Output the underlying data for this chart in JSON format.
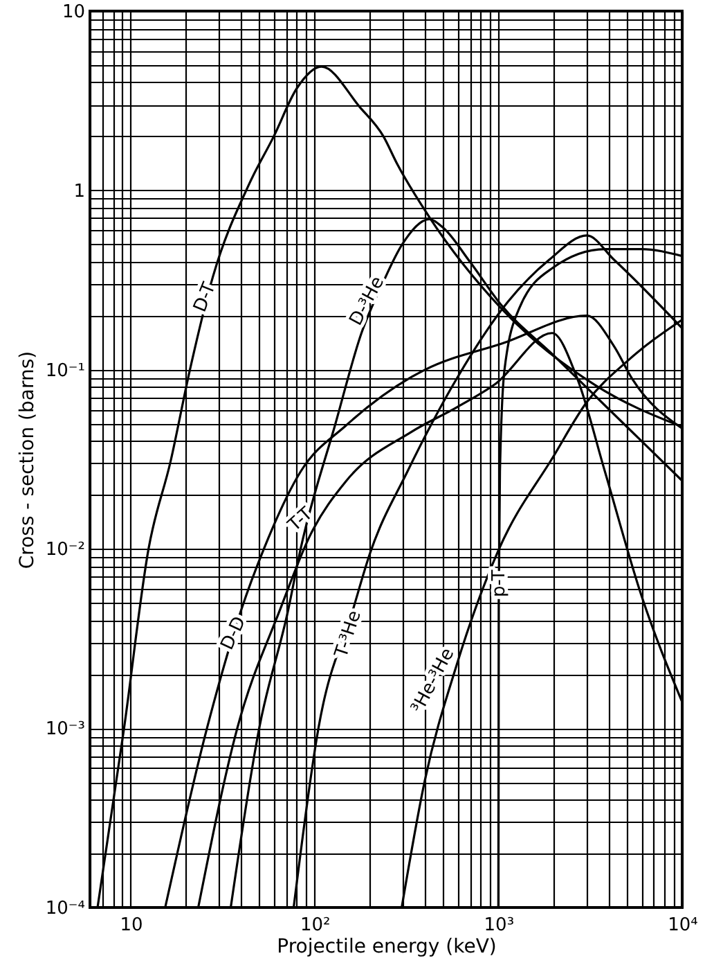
{
  "chart_data": {
    "type": "line",
    "xlabel": "Projectile energy (keV)",
    "ylabel": "Cross - section (barns)",
    "log": "xy",
    "grid": true,
    "xlim": [
      6,
      10000
    ],
    "ylim": [
      0.0001,
      10
    ],
    "xticks": [
      {
        "value": 6,
        "label": null
      },
      {
        "value": 7,
        "label": null
      },
      {
        "value": 8,
        "label": null
      },
      {
        "value": 9,
        "label": null
      },
      10,
      {
        "value": 20,
        "label": null
      },
      {
        "value": 30,
        "label": null
      },
      {
        "value": 40,
        "label": null
      },
      {
        "value": 50,
        "label": null
      },
      {
        "value": 60,
        "label": null
      },
      {
        "value": 70,
        "label": null
      },
      {
        "value": 80,
        "label": null
      },
      {
        "value": 90,
        "label": null
      },
      {
        "value": 100,
        "label": "10²"
      },
      {
        "value": 200,
        "label": null
      },
      {
        "value": 300,
        "label": null
      },
      {
        "value": 400,
        "label": null
      },
      {
        "value": 500,
        "label": null
      },
      {
        "value": 600,
        "label": null
      },
      {
        "value": 700,
        "label": null
      },
      {
        "value": 800,
        "label": null
      },
      {
        "value": 900,
        "label": null
      },
      {
        "value": 1000,
        "label": "10³"
      },
      {
        "value": 2000,
        "label": null
      },
      {
        "value": 3000,
        "label": null
      },
      {
        "value": 4000,
        "label": null
      },
      {
        "value": 5000,
        "label": null
      },
      {
        "value": 6000,
        "label": null
      },
      {
        "value": 7000,
        "label": null
      },
      {
        "value": 8000,
        "label": null
      },
      {
        "value": 9000,
        "label": null
      },
      {
        "value": 10000,
        "label": "10⁴"
      }
    ],
    "yticks": [
      {
        "value": 0.0001,
        "label": "10⁻⁴"
      },
      {
        "value": 0.0002,
        "label": null
      },
      {
        "value": 0.0003,
        "label": null
      },
      {
        "value": 0.0004,
        "label": null
      },
      {
        "value": 0.0005,
        "label": null
      },
      {
        "value": 0.0006,
        "label": null
      },
      {
        "value": 0.0007,
        "label": null
      },
      {
        "value": 0.0008,
        "label": null
      },
      {
        "value": 0.0009,
        "label": null
      },
      {
        "value": 0.001,
        "label": "10⁻³"
      },
      {
        "value": 0.002,
        "label": null
      },
      {
        "value": 0.003,
        "label": null
      },
      {
        "value": 0.004,
        "label": null
      },
      {
        "value": 0.005,
        "label": null
      },
      {
        "value": 0.006,
        "label": null
      },
      {
        "value": 0.007,
        "label": null
      },
      {
        "value": 0.008,
        "label": null
      },
      {
        "value": 0.009,
        "label": null
      },
      {
        "value": 0.01,
        "label": "10⁻²"
      },
      {
        "value": 0.02,
        "label": null
      },
      {
        "value": 0.03,
        "label": null
      },
      {
        "value": 0.04,
        "label": null
      },
      {
        "value": 0.05,
        "label": null
      },
      {
        "value": 0.06,
        "label": null
      },
      {
        "value": 0.07,
        "label": null
      },
      {
        "value": 0.08,
        "label": null
      },
      {
        "value": 0.09,
        "label": null
      },
      {
        "value": 0.1,
        "label": "10⁻¹"
      },
      {
        "value": 0.2,
        "label": null
      },
      {
        "value": 0.3,
        "label": null
      },
      {
        "value": 0.4,
        "label": null
      },
      {
        "value": 0.5,
        "label": null
      },
      {
        "value": 0.6,
        "label": null
      },
      {
        "value": 0.7,
        "label": null
      },
      {
        "value": 0.8,
        "label": null
      },
      {
        "value": 0.9,
        "label": null
      },
      1,
      {
        "value": 2,
        "label": null
      },
      {
        "value": 3,
        "label": null
      },
      {
        "value": 4,
        "label": null
      },
      {
        "value": 5,
        "label": null
      },
      {
        "value": 6,
        "label": null
      },
      {
        "value": 7,
        "label": null
      },
      {
        "value": 8,
        "label": null
      },
      {
        "value": 9,
        "label": null
      },
      10
    ],
    "series": [
      {
        "name": "D-T",
        "color": "#000000",
        "x": [
          6.6,
          9.2,
          12.5,
          16.5,
          21,
          28,
          44,
          60,
          80,
          109,
          177,
          237,
          282,
          421,
          1035,
          3360,
          10000
        ],
        "values": [
          0.0001,
          0.001,
          0.01,
          0.031,
          0.1,
          0.33,
          1.08,
          2.0,
          3.7,
          4.9,
          2.9,
          2.0,
          1.4,
          0.71,
          0.22,
          0.082,
          0.048
        ]
      },
      {
        "name": "D-³He",
        "color": "#000000",
        "x": [
          35,
          50,
          72,
          84,
          130,
          180,
          237,
          300,
          421,
          500,
          700,
          1035,
          2000,
          4000,
          10000
        ],
        "values": [
          0.0001,
          0.001,
          0.0046,
          0.01,
          0.05,
          0.16,
          0.31,
          0.5,
          0.69,
          0.62,
          0.4,
          0.23,
          0.12,
          0.06,
          0.024
        ]
      },
      {
        "name": "D-D",
        "color": "#000000",
        "x": [
          15.4,
          26,
          40,
          53,
          84,
          149,
          337,
          400,
          1050,
          3030,
          4260,
          5340,
          10000
        ],
        "values": [
          0.0001,
          0.001,
          0.0046,
          0.01,
          0.027,
          0.049,
          0.091,
          0.1,
          0.14,
          0.2,
          0.135,
          0.089,
          0.047
        ]
      },
      {
        "name": "T-T",
        "color": "#000000",
        "x": [
          23.3,
          38,
          65,
          95,
          149,
          337,
          600,
          960,
          1960,
          2690,
          3800,
          6000,
          10000
        ],
        "values": [
          0.0001,
          0.001,
          0.0046,
          0.012,
          0.024,
          0.045,
          0.062,
          0.083,
          0.16,
          0.089,
          0.027,
          0.0055,
          0.0014
        ]
      },
      {
        "name": "T-³He",
        "color": "#000000",
        "x": [
          77,
          105,
          162,
          200,
          320,
          593,
          1130,
          1890,
          3030,
          4260,
          10000
        ],
        "values": [
          0.0001,
          0.001,
          0.0046,
          0.0094,
          0.027,
          0.089,
          0.24,
          0.41,
          0.56,
          0.41,
          0.17
        ]
      },
      {
        "name": "³He-³He",
        "color": "#000000",
        "x": [
          298,
          398,
          593,
          1000,
          2000,
          3030,
          5100,
          10000
        ],
        "values": [
          0.0001,
          0.00051,
          0.00225,
          0.0098,
          0.033,
          0.066,
          0.113,
          0.19
        ]
      },
      {
        "name": "p-T",
        "color": "#000000",
        "x": [
          1000,
          1005,
          1020,
          1080,
          1300,
          1980,
          3800,
          6000,
          10000
        ],
        "values": [
          0.0001,
          0.005,
          0.027,
          0.1,
          0.22,
          0.37,
          0.47,
          0.47,
          0.43
        ]
      }
    ]
  }
}
